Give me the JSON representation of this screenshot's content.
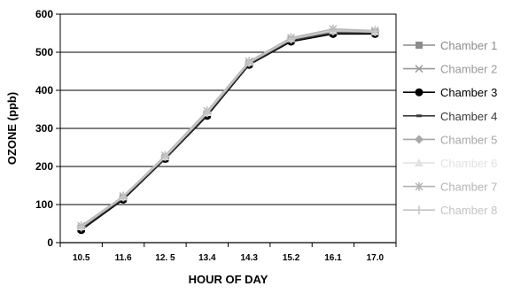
{
  "chart_data": {
    "type": "line",
    "title": "",
    "xlabel": "HOUR OF DAY",
    "ylabel": "OZONE (ppb)",
    "categories": [
      "10.5",
      "11.6",
      "12. 5",
      "13.4",
      "14.3",
      "15.2",
      "16.1",
      "17.0"
    ],
    "ylim": [
      0,
      600
    ],
    "yticks": [
      "0",
      "100",
      "200",
      "300",
      "400",
      "500",
      "600"
    ],
    "grid": "horizontal",
    "legend_position": "right",
    "series": [
      {
        "name": "Chamber 1",
        "color": "#8c8c8c",
        "marker": "square",
        "values": [
          35,
          115,
          220,
          335,
          468,
          530,
          550,
          550
        ]
      },
      {
        "name": "Chamber 2",
        "color": "#9a9a9a",
        "marker": "x",
        "values": [
          38,
          117,
          223,
          338,
          470,
          532,
          553,
          552
        ]
      },
      {
        "name": "Chamber 3",
        "color": "#000000",
        "marker": "circle",
        "values": [
          33,
          113,
          220,
          333,
          467,
          528,
          548,
          548
        ]
      },
      {
        "name": "Chamber 4",
        "color": "#3a3a3a",
        "marker": "dash",
        "values": [
          36,
          116,
          221,
          336,
          469,
          531,
          551,
          551
        ]
      },
      {
        "name": "Chamber 5",
        "color": "#a8a8a8",
        "marker": "diamond",
        "values": [
          40,
          119,
          225,
          340,
          472,
          534,
          555,
          553
        ]
      },
      {
        "name": "Chamber 6",
        "color": "#e2e2e2",
        "marker": "triangle",
        "values": [
          42,
          120,
          226,
          342,
          474,
          536,
          557,
          554
        ]
      },
      {
        "name": "Chamber 7",
        "color": "#b4b4b4",
        "marker": "asterisk",
        "values": [
          44,
          122,
          229,
          346,
          476,
          538,
          561,
          557
        ]
      },
      {
        "name": "Chamber 8",
        "color": "#c4c4c4",
        "marker": "plus",
        "values": [
          41,
          120,
          227,
          343,
          473,
          535,
          556,
          555
        ]
      }
    ]
  }
}
